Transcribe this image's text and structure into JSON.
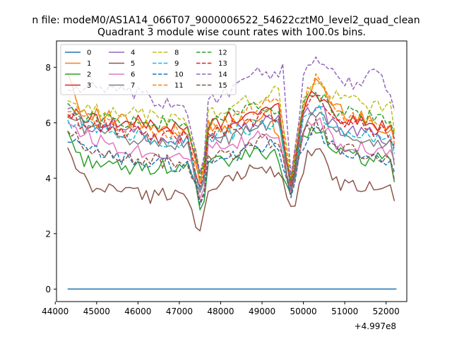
{
  "chart_data": {
    "type": "line",
    "suptitle": "n file: modeM0/AS1A14_066T07_9000006522_54622cztM0_level2_quad_clean",
    "title": "Quadrant 3 module wise count rates with 100.0s bins.",
    "xlabel": "",
    "ylabel": "",
    "x_offset_label": "+4.997e8",
    "x_range": [
      44300,
      52250
    ],
    "x_step": 100,
    "xlim": [
      44030,
      52500
    ],
    "ylim": [
      -0.45,
      8.95
    ],
    "xticks": [
      44000,
      45000,
      46000,
      47000,
      48000,
      49000,
      50000,
      51000,
      52000
    ],
    "xtick_labels": [
      "44000",
      "45000",
      "46000",
      "47000",
      "48000",
      "49000",
      "50000",
      "51000",
      "52000"
    ],
    "yticks": [
      0,
      2,
      4,
      6,
      8
    ],
    "ytick_labels": [
      "0",
      "2",
      "4",
      "6",
      "8"
    ],
    "legend": {
      "location": "upper-left",
      "columns": 4
    },
    "series": [
      {
        "name": "0",
        "color": "#1f77b4",
        "style": "solid",
        "values": [
          [
            44300,
            0.0
          ],
          [
            52250,
            0.0
          ]
        ]
      },
      {
        "name": "1",
        "color": "#ff7f0e",
        "style": "solid",
        "values": [
          [
            44300,
            7.8
          ],
          [
            44600,
            6.5
          ],
          [
            45200,
            6.2
          ],
          [
            45800,
            6.0
          ],
          [
            46200,
            5.9
          ],
          [
            46800,
            5.6
          ],
          [
            47200,
            5.5
          ],
          [
            47550,
            3.6
          ],
          [
            47700,
            6.0
          ],
          [
            48200,
            5.8
          ],
          [
            48700,
            6.2
          ],
          [
            49200,
            6.3
          ],
          [
            49700,
            3.8
          ],
          [
            50000,
            6.4
          ],
          [
            50300,
            7.6
          ],
          [
            50800,
            6.5
          ],
          [
            51500,
            6.1
          ],
          [
            52200,
            5.7
          ],
          [
            52250,
            4.4
          ]
        ]
      },
      {
        "name": "2",
        "color": "#2ca02c",
        "style": "solid",
        "values": [
          [
            44300,
            5.7
          ],
          [
            44600,
            4.7
          ],
          [
            45000,
            4.6
          ],
          [
            45600,
            4.3
          ],
          [
            46200,
            4.4
          ],
          [
            46800,
            4.4
          ],
          [
            47300,
            4.3
          ],
          [
            47550,
            2.5
          ],
          [
            47700,
            4.5
          ],
          [
            48200,
            4.6
          ],
          [
            48800,
            4.9
          ],
          [
            49300,
            5.0
          ],
          [
            49700,
            3.4
          ],
          [
            50000,
            5.6
          ],
          [
            50300,
            5.9
          ],
          [
            50800,
            4.9
          ],
          [
            51500,
            4.7
          ],
          [
            52100,
            4.6
          ],
          [
            52250,
            3.4
          ]
        ]
      },
      {
        "name": "3",
        "color": "#d62728",
        "style": "solid",
        "values": [
          [
            44300,
            6.3
          ],
          [
            44800,
            6.2
          ],
          [
            45400,
            6.0
          ],
          [
            46000,
            6.0
          ],
          [
            46600,
            5.9
          ],
          [
            47200,
            5.7
          ],
          [
            47550,
            3.9
          ],
          [
            47700,
            5.9
          ],
          [
            48300,
            6.2
          ],
          [
            48900,
            6.4
          ],
          [
            49400,
            6.5
          ],
          [
            49700,
            3.9
          ],
          [
            50000,
            6.5
          ],
          [
            50300,
            7.2
          ],
          [
            50800,
            6.2
          ],
          [
            51500,
            6.0
          ],
          [
            52150,
            5.8
          ],
          [
            52250,
            4.6
          ]
        ]
      },
      {
        "name": "4",
        "color": "#9467bd",
        "style": "solid",
        "values": [
          [
            44300,
            6.5
          ],
          [
            44800,
            5.9
          ],
          [
            45400,
            5.9
          ],
          [
            46000,
            5.6
          ],
          [
            46600,
            5.5
          ],
          [
            47200,
            5.4
          ],
          [
            47550,
            3.3
          ],
          [
            47700,
            5.6
          ],
          [
            48300,
            5.7
          ],
          [
            48900,
            6.0
          ],
          [
            49400,
            6.2
          ],
          [
            49700,
            3.7
          ],
          [
            50000,
            6.2
          ],
          [
            50300,
            6.7
          ],
          [
            50800,
            5.8
          ],
          [
            51500,
            5.6
          ],
          [
            52150,
            5.4
          ],
          [
            52250,
            4.3
          ]
        ]
      },
      {
        "name": "5",
        "color": "#8c564b",
        "style": "solid",
        "values": [
          [
            44300,
            5.1
          ],
          [
            44450,
            4.4
          ],
          [
            44700,
            3.9
          ],
          [
            45000,
            3.5
          ],
          [
            45400,
            3.7
          ],
          [
            45800,
            3.6
          ],
          [
            46300,
            3.3
          ],
          [
            46800,
            3.5
          ],
          [
            47200,
            3.3
          ],
          [
            47500,
            2.1
          ],
          [
            47700,
            3.4
          ],
          [
            48200,
            3.9
          ],
          [
            48600,
            4.3
          ],
          [
            49100,
            4.3
          ],
          [
            49500,
            4.1
          ],
          [
            49750,
            2.7
          ],
          [
            50100,
            4.8
          ],
          [
            50400,
            5.1
          ],
          [
            50800,
            3.8
          ],
          [
            51500,
            3.6
          ],
          [
            52100,
            3.9
          ],
          [
            52250,
            2.9
          ]
        ]
      },
      {
        "name": "6",
        "color": "#e377c2",
        "style": "solid",
        "values": [
          [
            44300,
            6.0
          ],
          [
            44800,
            5.5
          ],
          [
            45400,
            5.2
          ],
          [
            46000,
            5.0
          ],
          [
            46600,
            4.9
          ],
          [
            47200,
            4.9
          ],
          [
            47550,
            3.0
          ],
          [
            47700,
            5.0
          ],
          [
            48300,
            5.1
          ],
          [
            48900,
            5.5
          ],
          [
            49400,
            5.6
          ],
          [
            49700,
            3.5
          ],
          [
            50000,
            5.6
          ],
          [
            50300,
            6.2
          ],
          [
            50800,
            5.3
          ],
          [
            51500,
            5.1
          ],
          [
            52150,
            5.0
          ],
          [
            52250,
            4.0
          ]
        ]
      },
      {
        "name": "7",
        "color": "#7f7f7f",
        "style": "solid",
        "values": [
          [
            44300,
            6.2
          ],
          [
            44800,
            5.8
          ],
          [
            45400,
            5.6
          ],
          [
            46000,
            5.4
          ],
          [
            46600,
            5.3
          ],
          [
            47200,
            5.2
          ],
          [
            47550,
            3.2
          ],
          [
            47700,
            5.3
          ],
          [
            48300,
            5.5
          ],
          [
            48900,
            5.8
          ],
          [
            49400,
            5.9
          ],
          [
            49700,
            3.6
          ],
          [
            50000,
            5.9
          ],
          [
            50300,
            6.4
          ],
          [
            50800,
            5.6
          ],
          [
            51500,
            5.4
          ],
          [
            52150,
            5.2
          ],
          [
            52250,
            4.1
          ]
        ]
      },
      {
        "name": "8",
        "color": "#bcbd22",
        "style": "dashed",
        "values": [
          [
            44300,
            6.8
          ],
          [
            44800,
            6.4
          ],
          [
            45400,
            6.5
          ],
          [
            46000,
            6.3
          ],
          [
            46600,
            6.2
          ],
          [
            47200,
            6.1
          ],
          [
            47550,
            3.8
          ],
          [
            47700,
            6.3
          ],
          [
            48300,
            6.6
          ],
          [
            48900,
            6.9
          ],
          [
            49400,
            7.1
          ],
          [
            49700,
            4.0
          ],
          [
            50000,
            6.8
          ],
          [
            50300,
            7.4
          ],
          [
            50800,
            6.9
          ],
          [
            51500,
            6.7
          ],
          [
            52150,
            6.5
          ],
          [
            52250,
            5.0
          ]
        ]
      },
      {
        "name": "9",
        "color": "#17becf",
        "style": "dashed",
        "values": [
          [
            44300,
            6.1
          ],
          [
            44800,
            5.9
          ],
          [
            45400,
            5.7
          ],
          [
            46000,
            5.5
          ],
          [
            46600,
            5.4
          ],
          [
            47200,
            5.3
          ],
          [
            47550,
            3.3
          ],
          [
            47700,
            5.5
          ],
          [
            48300,
            5.6
          ],
          [
            48900,
            5.9
          ],
          [
            49400,
            6.0
          ],
          [
            49700,
            3.6
          ],
          [
            50000,
            6.0
          ],
          [
            50300,
            6.6
          ],
          [
            50800,
            5.7
          ],
          [
            51500,
            5.5
          ],
          [
            52150,
            5.3
          ],
          [
            52250,
            4.2
          ]
        ]
      },
      {
        "name": "10",
        "color": "#1f77b4",
        "style": "dashed",
        "values": [
          [
            44300,
            5.3
          ],
          [
            44800,
            5.0
          ],
          [
            45400,
            4.8
          ],
          [
            46000,
            4.6
          ],
          [
            46600,
            4.5
          ],
          [
            47200,
            4.5
          ],
          [
            47550,
            2.8
          ],
          [
            47700,
            4.6
          ],
          [
            48300,
            4.8
          ],
          [
            48900,
            5.1
          ],
          [
            49400,
            5.2
          ],
          [
            49700,
            3.3
          ],
          [
            50000,
            5.3
          ],
          [
            50300,
            5.8
          ],
          [
            50800,
            4.9
          ],
          [
            51500,
            4.7
          ],
          [
            52150,
            4.6
          ],
          [
            52250,
            3.6
          ]
        ]
      },
      {
        "name": "11",
        "color": "#ff7f0e",
        "style": "dashed",
        "values": [
          [
            44300,
            6.4
          ],
          [
            44800,
            6.1
          ],
          [
            45400,
            6.0
          ],
          [
            46000,
            5.8
          ],
          [
            46600,
            5.7
          ],
          [
            47200,
            5.6
          ],
          [
            47550,
            3.5
          ],
          [
            47700,
            5.8
          ],
          [
            48300,
            6.1
          ],
          [
            48900,
            6.6
          ],
          [
            49400,
            6.8
          ],
          [
            49700,
            3.9
          ],
          [
            50000,
            6.7
          ],
          [
            50300,
            7.7
          ],
          [
            50800,
            6.3
          ],
          [
            51500,
            6.1
          ],
          [
            52150,
            5.9
          ],
          [
            52250,
            4.6
          ]
        ]
      },
      {
        "name": "12",
        "color": "#2ca02c",
        "style": "dashed",
        "values": [
          [
            44300,
            6.7
          ],
          [
            44800,
            6.2
          ],
          [
            45400,
            6.1
          ],
          [
            46000,
            6.0
          ],
          [
            46600,
            6.0
          ],
          [
            47200,
            5.9
          ],
          [
            47550,
            3.7
          ],
          [
            47700,
            6.1
          ],
          [
            48300,
            6.3
          ],
          [
            48900,
            6.5
          ],
          [
            49400,
            6.6
          ],
          [
            49700,
            3.9
          ],
          [
            50000,
            6.6
          ],
          [
            50300,
            7.1
          ],
          [
            50800,
            6.4
          ],
          [
            51500,
            6.2
          ],
          [
            52150,
            6.1
          ],
          [
            52250,
            4.8
          ]
        ]
      },
      {
        "name": "13",
        "color": "#d62728",
        "style": "dashed",
        "values": [
          [
            44300,
            6.2
          ],
          [
            44800,
            5.9
          ],
          [
            45400,
            5.8
          ],
          [
            46000,
            5.6
          ],
          [
            46600,
            5.5
          ],
          [
            47200,
            5.5
          ],
          [
            47550,
            3.4
          ],
          [
            47700,
            5.6
          ],
          [
            48300,
            5.8
          ],
          [
            48900,
            6.1
          ],
          [
            49400,
            6.3
          ],
          [
            49700,
            3.7
          ],
          [
            50000,
            6.3
          ],
          [
            50300,
            7.0
          ],
          [
            50800,
            6.0
          ],
          [
            51500,
            5.8
          ],
          [
            52150,
            5.6
          ],
          [
            52250,
            4.4
          ]
        ]
      },
      {
        "name": "14",
        "color": "#9467bd",
        "style": "dashed",
        "values": [
          [
            44300,
            7.2
          ],
          [
            44800,
            7.3
          ],
          [
            45400,
            7.1
          ],
          [
            46000,
            7.0
          ],
          [
            46600,
            6.7
          ],
          [
            47200,
            6.5
          ],
          [
            47550,
            3.8
          ],
          [
            47700,
            6.8
          ],
          [
            48300,
            7.2
          ],
          [
            48700,
            7.8
          ],
          [
            49200,
            7.6
          ],
          [
            49500,
            7.9
          ],
          [
            49700,
            4.1
          ],
          [
            50000,
            7.5
          ],
          [
            50300,
            8.5
          ],
          [
            50800,
            7.6
          ],
          [
            51300,
            7.4
          ],
          [
            51700,
            7.8
          ],
          [
            52150,
            7.2
          ],
          [
            52250,
            5.6
          ]
        ]
      },
      {
        "name": "15",
        "color": "#8c564b",
        "style": "dashed",
        "values": [
          [
            44300,
            5.7
          ],
          [
            44800,
            5.0
          ],
          [
            45400,
            4.8
          ],
          [
            46000,
            4.7
          ],
          [
            46600,
            4.6
          ],
          [
            47200,
            4.6
          ],
          [
            47550,
            2.9
          ],
          [
            47700,
            4.7
          ],
          [
            48300,
            4.9
          ],
          [
            48900,
            5.3
          ],
          [
            49400,
            5.4
          ],
          [
            49700,
            3.4
          ],
          [
            50000,
            5.5
          ],
          [
            50300,
            6.0
          ],
          [
            50800,
            5.1
          ],
          [
            51500,
            4.8
          ],
          [
            52150,
            4.7
          ],
          [
            52250,
            3.7
          ]
        ]
      }
    ]
  }
}
